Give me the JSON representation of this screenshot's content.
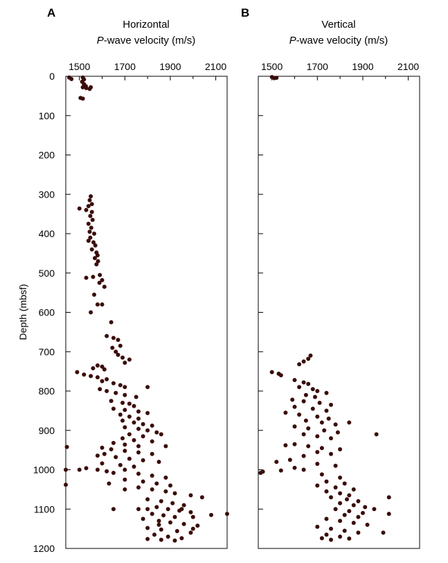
{
  "panels": [
    {
      "letter": "A",
      "title_line1": "Horizontal",
      "title_v": "P",
      "title_rest": "-wave velocity (m/s)"
    },
    {
      "letter": "B",
      "title_line1": "Vertical",
      "title_v": "P",
      "title_rest": "-wave velocity (m/s)"
    }
  ],
  "ylabel": "Depth (mbsf)",
  "colors": {
    "points": "#3a0d0a",
    "axes": "#000000"
  },
  "chart_data": [
    {
      "type": "scatter",
      "panel": "A",
      "title": "Horizontal P-wave velocity (m/s)",
      "xlabel": "Horizontal P-wave velocity (m/s)",
      "ylabel": "Depth (mbsf)",
      "xlim": [
        1440,
        2150
      ],
      "ylim": [
        1200,
        0
      ],
      "xticks": [
        1500,
        1700,
        1900,
        2100
      ],
      "yticks": [
        0,
        100,
        200,
        300,
        400,
        500,
        600,
        700,
        800,
        900,
        1000,
        1100,
        1200
      ],
      "grid": false,
      "points": [
        [
          1455,
          3
        ],
        [
          1465,
          7
        ],
        [
          1515,
          3
        ],
        [
          1520,
          8
        ],
        [
          1512,
          14
        ],
        [
          1520,
          20
        ],
        [
          1528,
          25
        ],
        [
          1515,
          28
        ],
        [
          1530,
          30
        ],
        [
          1545,
          32
        ],
        [
          1550,
          28
        ],
        [
          1505,
          55
        ],
        [
          1515,
          57
        ],
        [
          1550,
          305
        ],
        [
          1545,
          315
        ],
        [
          1555,
          325
        ],
        [
          1540,
          330
        ],
        [
          1500,
          336
        ],
        [
          1530,
          340
        ],
        [
          1555,
          345
        ],
        [
          1548,
          355
        ],
        [
          1558,
          365
        ],
        [
          1540,
          375
        ],
        [
          1552,
          385
        ],
        [
          1545,
          395
        ],
        [
          1565,
          400
        ],
        [
          1548,
          410
        ],
        [
          1540,
          418
        ],
        [
          1562,
          422
        ],
        [
          1570,
          430
        ],
        [
          1555,
          440
        ],
        [
          1575,
          448
        ],
        [
          1580,
          455
        ],
        [
          1568,
          462
        ],
        [
          1582,
          470
        ],
        [
          1575,
          478
        ],
        [
          1590,
          505
        ],
        [
          1560,
          510
        ],
        [
          1530,
          512
        ],
        [
          1600,
          518
        ],
        [
          1588,
          525
        ],
        [
          1610,
          535
        ],
        [
          1565,
          555
        ],
        [
          1580,
          580
        ],
        [
          1550,
          600
        ],
        [
          1600,
          580
        ],
        [
          1640,
          625
        ],
        [
          1620,
          660
        ],
        [
          1650,
          665
        ],
        [
          1670,
          670
        ],
        [
          1680,
          685
        ],
        [
          1645,
          690
        ],
        [
          1660,
          700
        ],
        [
          1670,
          708
        ],
        [
          1690,
          715
        ],
        [
          1720,
          720
        ],
        [
          1700,
          728
        ],
        [
          1580,
          735
        ],
        [
          1600,
          738
        ],
        [
          1560,
          742
        ],
        [
          1610,
          745
        ],
        [
          1490,
          752
        ],
        [
          1520,
          758
        ],
        [
          1550,
          762
        ],
        [
          1580,
          765
        ],
        [
          1620,
          770
        ],
        [
          1600,
          775
        ],
        [
          1650,
          780
        ],
        [
          1680,
          785
        ],
        [
          1700,
          790
        ],
        [
          1590,
          795
        ],
        [
          1620,
          800
        ],
        [
          1660,
          805
        ],
        [
          1700,
          810
        ],
        [
          1750,
          815
        ],
        [
          1800,
          790
        ],
        [
          1640,
          825
        ],
        [
          1690,
          830
        ],
        [
          1720,
          832
        ],
        [
          1740,
          838
        ],
        [
          1650,
          845
        ],
        [
          1700,
          848
        ],
        [
          1760,
          852
        ],
        [
          1800,
          856
        ],
        [
          1680,
          860
        ],
        [
          1720,
          865
        ],
        [
          1760,
          870
        ],
        [
          1690,
          875
        ],
        [
          1740,
          880
        ],
        [
          1780,
          884
        ],
        [
          1820,
          888
        ],
        [
          1700,
          892
        ],
        [
          1760,
          896
        ],
        [
          1800,
          900
        ],
        [
          1840,
          905
        ],
        [
          1720,
          910
        ],
        [
          1780,
          915
        ],
        [
          1860,
          910
        ],
        [
          1690,
          920
        ],
        [
          1740,
          925
        ],
        [
          1820,
          928
        ],
        [
          1650,
          932
        ],
        [
          1700,
          936
        ],
        [
          1760,
          940
        ],
        [
          1600,
          944
        ],
        [
          1880,
          940
        ],
        [
          1640,
          948
        ],
        [
          1700,
          952
        ],
        [
          1760,
          956
        ],
        [
          1820,
          960
        ],
        [
          1580,
          964
        ],
        [
          1660,
          968
        ],
        [
          1720,
          972
        ],
        [
          1780,
          976
        ],
        [
          1850,
          980
        ],
        [
          1600,
          984
        ],
        [
          1680,
          988
        ],
        [
          1740,
          992
        ],
        [
          1530,
          996
        ],
        [
          1580,
          1000
        ],
        [
          1620,
          1004
        ],
        [
          1700,
          1000
        ],
        [
          1650,
          1008
        ],
        [
          1760,
          1010
        ],
        [
          1820,
          1015
        ],
        [
          1880,
          1020
        ],
        [
          1700,
          1025
        ],
        [
          1780,
          1030
        ],
        [
          1840,
          1035
        ],
        [
          1900,
          1040
        ],
        [
          1760,
          1045
        ],
        [
          1820,
          1050
        ],
        [
          1880,
          1055
        ],
        [
          1920,
          1060
        ],
        [
          1990,
          1065
        ],
        [
          2040,
          1070
        ],
        [
          1800,
          1075
        ],
        [
          1860,
          1080
        ],
        [
          1910,
          1085
        ],
        [
          1960,
          1090
        ],
        [
          1840,
          1095
        ],
        [
          1890,
          1100
        ],
        [
          1940,
          1104
        ],
        [
          1990,
          1108
        ],
        [
          1650,
          1100
        ],
        [
          1820,
          1112
        ],
        [
          1870,
          1116
        ],
        [
          1920,
          1120
        ],
        [
          2000,
          1120
        ],
        [
          1780,
          1125
        ],
        [
          1850,
          1130
        ],
        [
          1900,
          1134
        ],
        [
          1960,
          1138
        ],
        [
          2020,
          1142
        ],
        [
          1800,
          1148
        ],
        [
          1860,
          1152
        ],
        [
          1930,
          1156
        ],
        [
          1990,
          1160
        ],
        [
          1830,
          1165
        ],
        [
          1890,
          1170
        ],
        [
          1950,
          1174
        ],
        [
          1800,
          1176
        ],
        [
          1860,
          1178
        ],
        [
          1920,
          1180
        ],
        [
          2080,
          1115
        ],
        [
          2150,
          1112
        ],
        [
          1445,
          942
        ],
        [
          1440,
          1000
        ],
        [
          1440,
          1038
        ],
        [
          1500,
          1000
        ],
        [
          1610,
          960
        ],
        [
          1700,
          1050
        ],
        [
          1630,
          1035
        ],
        [
          1760,
          1100
        ],
        [
          1800,
          1100
        ],
        [
          1850,
          1140
        ],
        [
          1950,
          1100
        ],
        [
          2000,
          1150
        ]
      ]
    },
    {
      "type": "scatter",
      "panel": "B",
      "title": "Vertical P-wave velocity (m/s)",
      "xlabel": "Vertical P-wave velocity (m/s)",
      "ylabel": "",
      "xlim": [
        1440,
        2150
      ],
      "ylim": [
        1200,
        0
      ],
      "xticks": [
        1500,
        1700,
        1900,
        2100
      ],
      "yticks": [
        0,
        100,
        200,
        300,
        400,
        500,
        600,
        700,
        800,
        900,
        1000,
        1100,
        1200
      ],
      "grid": false,
      "points": [
        [
          1500,
          2
        ],
        [
          1510,
          5
        ],
        [
          1520,
          4
        ],
        [
          1670,
          710
        ],
        [
          1660,
          718
        ],
        [
          1640,
          725
        ],
        [
          1620,
          732
        ],
        [
          1500,
          752
        ],
        [
          1530,
          756
        ],
        [
          1540,
          760
        ],
        [
          1600,
          772
        ],
        [
          1640,
          778
        ],
        [
          1660,
          782
        ],
        [
          1620,
          790
        ],
        [
          1680,
          795
        ],
        [
          1700,
          800
        ],
        [
          1740,
          805
        ],
        [
          1650,
          810
        ],
        [
          1690,
          815
        ],
        [
          1590,
          822
        ],
        [
          1640,
          826
        ],
        [
          1710,
          830
        ],
        [
          1760,
          835
        ],
        [
          1600,
          840
        ],
        [
          1680,
          845
        ],
        [
          1740,
          850
        ],
        [
          1560,
          855
        ],
        [
          1620,
          860
        ],
        [
          1700,
          865
        ],
        [
          1750,
          870
        ],
        [
          1650,
          875
        ],
        [
          1720,
          880
        ],
        [
          1780,
          885
        ],
        [
          1840,
          880
        ],
        [
          1600,
          890
        ],
        [
          1660,
          895
        ],
        [
          1730,
          900
        ],
        [
          1790,
          905
        ],
        [
          1640,
          910
        ],
        [
          1700,
          915
        ],
        [
          1760,
          920
        ],
        [
          1560,
          938
        ],
        [
          1600,
          935
        ],
        [
          1660,
          940
        ],
        [
          1720,
          945
        ],
        [
          1800,
          948
        ],
        [
          1700,
          955
        ],
        [
          1760,
          960
        ],
        [
          1640,
          965
        ],
        [
          1580,
          975
        ],
        [
          1520,
          980
        ],
        [
          1700,
          985
        ],
        [
          1780,
          990
        ],
        [
          1600,
          995
        ],
        [
          1640,
          1000
        ],
        [
          1540,
          1002
        ],
        [
          1460,
          1005
        ],
        [
          1450,
          1008
        ],
        [
          1720,
          1012
        ],
        [
          1800,
          1020
        ],
        [
          1740,
          1030
        ],
        [
          1820,
          1035
        ],
        [
          1700,
          1040
        ],
        [
          1780,
          1045
        ],
        [
          1860,
          1050
        ],
        [
          1740,
          1055
        ],
        [
          1800,
          1060
        ],
        [
          1840,
          1065
        ],
        [
          1760,
          1070
        ],
        [
          1830,
          1075
        ],
        [
          1880,
          1080
        ],
        [
          1800,
          1085
        ],
        [
          1860,
          1090
        ],
        [
          1910,
          1095
        ],
        [
          1780,
          1100
        ],
        [
          1840,
          1105
        ],
        [
          1900,
          1110
        ],
        [
          1820,
          1115
        ],
        [
          1880,
          1120
        ],
        [
          1740,
          1125
        ],
        [
          1800,
          1130
        ],
        [
          1860,
          1135
        ],
        [
          1920,
          1140
        ],
        [
          1700,
          1145
        ],
        [
          1760,
          1150
        ],
        [
          1820,
          1155
        ],
        [
          1880,
          1160
        ],
        [
          1740,
          1165
        ],
        [
          1800,
          1170
        ],
        [
          1720,
          1174
        ],
        [
          1760,
          1178
        ],
        [
          1840,
          1175
        ],
        [
          1950,
          1100
        ],
        [
          1990,
          1160
        ],
        [
          2015,
          1070
        ],
        [
          2015,
          1112
        ],
        [
          1960,
          910
        ]
      ]
    }
  ]
}
